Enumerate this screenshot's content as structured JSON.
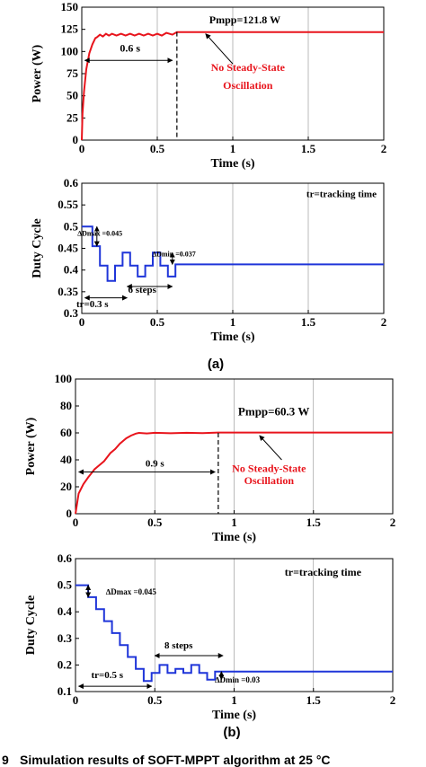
{
  "caption": "Simulation results of SOFT-MPPT algorithm at 25 °C",
  "caption_prefix": "9",
  "colors": {
    "power": "#e8141c",
    "duty": "#1f35d9",
    "axis": "#000000",
    "grid": "#000000"
  },
  "chart_data": [
    {
      "id": "a-power",
      "type": "line",
      "xlabel": "Time (s)",
      "ylabel": "Power (W)",
      "xlim": [
        0,
        2
      ],
      "ylim": [
        0,
        150
      ],
      "xticks": [
        0,
        0.5,
        1,
        1.5,
        2
      ],
      "xtick_labels": [
        "0",
        "0.5",
        "1",
        "1.5",
        "2"
      ],
      "yticks": [
        0,
        25,
        50,
        75,
        100,
        125,
        150
      ],
      "ytick_labels": [
        "0",
        "25",
        "50",
        "75",
        "100",
        "125",
        "150"
      ],
      "grid": true,
      "series": [
        {
          "x": [
            0,
            0.005,
            0.015,
            0.03,
            0.05,
            0.07,
            0.09,
            0.1,
            0.12,
            0.14,
            0.16,
            0.18,
            0.2,
            0.23,
            0.26,
            0.29,
            0.32,
            0.35,
            0.38,
            0.41,
            0.44,
            0.47,
            0.5,
            0.53,
            0.56,
            0.6,
            0.63,
            0.7,
            1.0,
            1.5,
            2.0
          ],
          "y": [
            0,
            30,
            55,
            80,
            98,
            108,
            115,
            116,
            119,
            117,
            120,
            118,
            120,
            118,
            120,
            118,
            120,
            118,
            120,
            118,
            120,
            118,
            120,
            118,
            121,
            119,
            121.8,
            121.8,
            121.8,
            121.8,
            121.8
          ]
        }
      ],
      "annotations": [
        {
          "text": "Pmpp=121.8 W"
        },
        {
          "text": "0.6 s"
        },
        {
          "text": "No Steady-State"
        },
        {
          "text": "Oscillation"
        }
      ]
    },
    {
      "id": "a-duty",
      "type": "line",
      "xlabel": "Time (s)",
      "ylabel": "Duty Cycle",
      "xlim": [
        0,
        2
      ],
      "ylim": [
        0.3,
        0.6
      ],
      "xticks": [
        0,
        0.5,
        1,
        1.5,
        2
      ],
      "xtick_labels": [
        "0",
        "0.5",
        "1",
        "1.5",
        "2"
      ],
      "yticks": [
        0.3,
        0.35,
        0.4,
        0.45,
        0.5,
        0.55,
        0.6
      ],
      "ytick_labels": [
        "0.3",
        "0.35",
        "0.4",
        "0.45",
        "0.5",
        "0.55",
        "0.6"
      ],
      "grid": true,
      "series": [
        {
          "x": [
            0,
            0.07,
            0.07,
            0.12,
            0.12,
            0.17,
            0.17,
            0.22,
            0.22,
            0.27,
            0.27,
            0.32,
            0.32,
            0.37,
            0.37,
            0.42,
            0.42,
            0.47,
            0.47,
            0.52,
            0.52,
            0.57,
            0.57,
            0.62,
            0.62,
            2.0
          ],
          "y": [
            0.5,
            0.5,
            0.455,
            0.455,
            0.41,
            0.41,
            0.375,
            0.375,
            0.41,
            0.41,
            0.44,
            0.44,
            0.41,
            0.41,
            0.385,
            0.385,
            0.41,
            0.41,
            0.44,
            0.44,
            0.41,
            0.41,
            0.385,
            0.385,
            0.413,
            0.413
          ]
        }
      ],
      "annotations": [
        {
          "text": "tr=tracking time"
        },
        {
          "text": "∆Dmax =0.045"
        },
        {
          "text": "∆Dmin =0.037"
        },
        {
          "text": "6 steps"
        },
        {
          "text": "tr=0.3 s"
        }
      ]
    },
    {
      "id": "b-power",
      "type": "line",
      "xlabel": "Time (s)",
      "ylabel": "Power (W)",
      "xlim": [
        0,
        2
      ],
      "ylim": [
        0,
        100
      ],
      "xticks": [
        0,
        0.5,
        1,
        1.5,
        2
      ],
      "xtick_labels": [
        "0",
        "0.5",
        "1",
        "1.5",
        "2"
      ],
      "yticks": [
        0,
        20,
        40,
        60,
        80,
        100
      ],
      "ytick_labels": [
        "0",
        "20",
        "40",
        "60",
        "80",
        "100"
      ],
      "grid": true,
      "series": [
        {
          "x": [
            0,
            0.02,
            0.05,
            0.08,
            0.1,
            0.12,
            0.15,
            0.18,
            0.2,
            0.22,
            0.25,
            0.28,
            0.3,
            0.32,
            0.35,
            0.38,
            0.4,
            0.45,
            0.5,
            0.6,
            0.7,
            0.8,
            0.9,
            1.0,
            1.5,
            2.0
          ],
          "y": [
            0,
            15,
            22,
            27,
            30,
            33,
            36,
            39,
            42,
            45,
            48,
            52,
            54,
            56,
            58,
            59.5,
            60,
            59.6,
            60.1,
            59.7,
            60.1,
            59.8,
            60.3,
            60.3,
            60.3,
            60.3
          ]
        }
      ],
      "annotations": [
        {
          "text": "Pmpp=60.3 W"
        },
        {
          "text": "0.9 s"
        },
        {
          "text": "No Steady-State"
        },
        {
          "text": "Oscillation"
        }
      ]
    },
    {
      "id": "b-duty",
      "type": "line",
      "xlabel": "Time (s)",
      "ylabel": "Duty Cycle",
      "xlim": [
        0,
        2
      ],
      "ylim": [
        0.1,
        0.6
      ],
      "xticks": [
        0,
        0.5,
        1,
        1.5,
        2
      ],
      "xtick_labels": [
        "0",
        "0.5",
        "1",
        "1.5",
        "2"
      ],
      "yticks": [
        0.1,
        0.2,
        0.3,
        0.4,
        0.5,
        0.6
      ],
      "ytick_labels": [
        "0.1",
        "0.2",
        "0.3",
        "0.4",
        "0.5",
        "0.6"
      ],
      "grid": true,
      "series": [
        {
          "x": [
            0,
            0.08,
            0.08,
            0.13,
            0.13,
            0.18,
            0.18,
            0.23,
            0.23,
            0.28,
            0.28,
            0.33,
            0.33,
            0.38,
            0.38,
            0.43,
            0.43,
            0.48,
            0.48,
            0.53,
            0.53,
            0.58,
            0.58,
            0.63,
            0.63,
            0.68,
            0.68,
            0.73,
            0.73,
            0.78,
            0.78,
            0.83,
            0.83,
            0.88,
            0.88,
            0.93,
            0.93,
            2.0
          ],
          "y": [
            0.5,
            0.5,
            0.455,
            0.455,
            0.41,
            0.41,
            0.365,
            0.365,
            0.32,
            0.32,
            0.275,
            0.275,
            0.23,
            0.23,
            0.185,
            0.185,
            0.14,
            0.14,
            0.17,
            0.17,
            0.2,
            0.2,
            0.17,
            0.17,
            0.185,
            0.185,
            0.17,
            0.17,
            0.2,
            0.2,
            0.17,
            0.17,
            0.145,
            0.145,
            0.175,
            0.175,
            0.175,
            0.175
          ]
        }
      ],
      "annotations": [
        {
          "text": "tr=tracking time"
        },
        {
          "text": "∆Dmax =0.045"
        },
        {
          "text": "8 steps"
        },
        {
          "text": "tr=0.5 s"
        },
        {
          "text": "∆Dmin =0.03"
        }
      ]
    }
  ],
  "subfigures": [
    "(a)",
    "(b)"
  ]
}
